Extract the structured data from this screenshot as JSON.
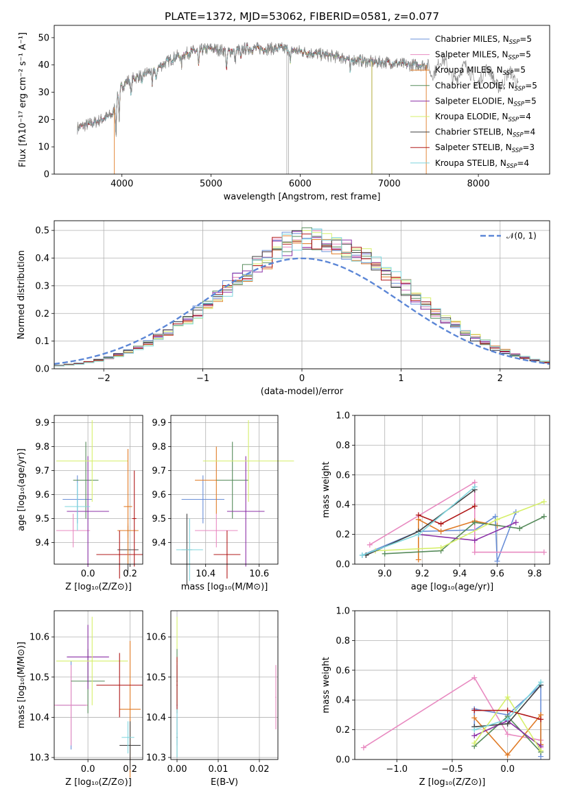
{
  "colors": {
    "chabrier_miles": "#6a8fd8",
    "salpeter_miles": "#e889c0",
    "kroupa_miles": "#e07b26",
    "chabrier_elodie": "#558a5a",
    "salpeter_elodie": "#8b2fa6",
    "kroupa_elodie": "#d6ef6a",
    "chabrier_stelib": "#404040",
    "salpeter_stelib": "#b01818",
    "kroupa_stelib": "#7dd6de",
    "normal_curve": "#5b86d6",
    "grid": "#b0b0b0"
  },
  "chart_data": [
    {
      "id": "spectrum",
      "type": "line",
      "title": "PLATE=1372, MJD=53062, FIBERID=0581, z=0.077",
      "xlabel": "wavelength [Angstrom, rest frame]",
      "ylabel": "Flux [fλ10⁻¹⁷ erg cm⁻² s⁻¹ A⁻¹]",
      "xlim": [
        3240,
        8800
      ],
      "ylim": [
        0,
        54.5
      ],
      "xticks": [
        4000,
        5000,
        6000,
        7000,
        8000
      ],
      "yticks": [
        0,
        10,
        20,
        30,
        40,
        50
      ],
      "grid": false,
      "legend_position": "top-right",
      "legend": [
        "Chabrier MILES, N_SSP=5",
        "Salpeter MILES, N_SSP=5",
        "Kroupa MILES, N_SSP=5",
        "Chabrier ELODIE, N_SSP=5",
        "Salpeter ELODIE, N_SSP=5",
        "Kroupa ELODIE, N_SSP=4",
        "Chabrier STELIB, N_SSP=4",
        "Salpeter STELIB, N_SSP=3",
        "Kroupa STELIB, N_SSP=4"
      ],
      "continuum_x": [
        3500,
        3700,
        3900,
        3950,
        4050,
        4200,
        4400,
        4600,
        4800,
        5000,
        5200,
        5400,
        5600,
        5800,
        6000,
        6200,
        6400,
        6600,
        6800,
        7000,
        7200,
        7400,
        7600,
        7800,
        8000,
        8200,
        8450
      ],
      "continuum_y": [
        17,
        19,
        22,
        30,
        34,
        36,
        39,
        43,
        45,
        46,
        45,
        46,
        46,
        46,
        45,
        44,
        43,
        42,
        41,
        41,
        40,
        40,
        39,
        37,
        36,
        35,
        34
      ]
    },
    {
      "id": "residuals",
      "type": "histogram",
      "xlabel": "(data-model)/error",
      "ylabel": "Normed distribution",
      "xlim": [
        -2.5,
        2.5
      ],
      "ylim": [
        0,
        0.535
      ],
      "xticks": [
        -2,
        -1,
        0,
        1,
        2
      ],
      "yticks": [
        0.0,
        0.1,
        0.2,
        0.3,
        0.4,
        0.5
      ],
      "grid": true,
      "legend_position": "top-right",
      "legend": [
        "𝒩(0, 1)"
      ],
      "normal": {
        "mu": 0,
        "sigma": 1
      }
    },
    {
      "id": "age-vs-z",
      "type": "scatter",
      "xlabel": "Z [log₁₀(Z/Z⊙)]",
      "ylabel": "age  [log₁₀(age/yr)]",
      "xlim": [
        -0.16,
        0.26
      ],
      "ylim": [
        9.31,
        9.93
      ],
      "xticks": [
        0.0,
        0.2
      ],
      "yticks": [
        9.4,
        9.5,
        9.6,
        9.7,
        9.8,
        9.9
      ],
      "grid": true,
      "points": [
        {
          "s": "chabrier_miles",
          "x": -0.05,
          "xerr": 0.07,
          "y": 9.58,
          "yerr": 0.1
        },
        {
          "s": "salpeter_miles",
          "x": -0.07,
          "xerr": 0.08,
          "y": 9.45,
          "yerr": 0.07
        },
        {
          "s": "kroupa_miles",
          "x": 0.19,
          "xerr": 0.05,
          "y": 9.45,
          "yerr": 0.03
        },
        {
          "s": "chabrier_elodie",
          "x": -0.01,
          "xerr": 0.06,
          "y": 9.66,
          "yerr": 0.16
        },
        {
          "s": "salpeter_elodie",
          "x": 0.0,
          "xerr": 0.1,
          "y": 9.53,
          "yerr": 0.23
        },
        {
          "s": "kroupa_elodie",
          "x": 0.02,
          "xerr": 0.17,
          "y": 9.74,
          "yerr": 0.17
        },
        {
          "s": "chabrier_stelib",
          "x": 0.19,
          "xerr": 0.05,
          "y": 9.37,
          "yerr": 0.1
        },
        {
          "s": "salpeter_stelib",
          "x": 0.15,
          "xerr": 0.11,
          "y": 9.35,
          "yerr": 0.1
        },
        {
          "s": "kroupa_stelib",
          "x": -0.05,
          "xerr": 0.06,
          "y": 9.55,
          "yerr": 0.1
        },
        {
          "s": "kroupa_miles",
          "x": 0.19,
          "xerr": 0.02,
          "y": 9.55,
          "yerr": 0.24
        },
        {
          "s": "salpeter_stelib",
          "x": 0.22,
          "xerr": 0.01,
          "y": 9.5,
          "yerr": 0.2
        }
      ]
    },
    {
      "id": "age-vs-mass",
      "type": "scatter",
      "xlabel": "mass [log₁₀(M/M⊙)]",
      "ylabel": "",
      "xlim": [
        10.27,
        10.67
      ],
      "ylim": [
        9.31,
        9.93
      ],
      "xticks": [
        10.4,
        10.6
      ],
      "yticks": [
        9.4,
        9.5,
        9.6,
        9.7,
        9.8,
        9.9
      ],
      "grid": true,
      "points": [
        {
          "s": "chabrier_miles",
          "x": 10.39,
          "xerr": 0.08,
          "y": 9.58,
          "yerr": 0.1
        },
        {
          "s": "salpeter_miles",
          "x": 10.44,
          "xerr": 0.08,
          "y": 9.45,
          "yerr": 0.07
        },
        {
          "s": "kroupa_miles",
          "x": 10.44,
          "xerr": 0.08,
          "y": 9.66,
          "yerr": 0.14
        },
        {
          "s": "chabrier_elodie",
          "x": 10.5,
          "xerr": 0.06,
          "y": 9.66,
          "yerr": 0.16
        },
        {
          "s": "salpeter_elodie",
          "x": 10.55,
          "xerr": 0.07,
          "y": 9.53,
          "yerr": 0.23
        },
        {
          "s": "kroupa_elodie",
          "x": 10.56,
          "xerr": 0.17,
          "y": 9.74,
          "yerr": 0.17
        },
        {
          "s": "chabrier_stelib",
          "x": 10.33,
          "xerr": 0.02,
          "y": 9.37,
          "yerr": 0.15
        },
        {
          "s": "salpeter_stelib",
          "x": 10.48,
          "xerr": 0.05,
          "y": 9.35,
          "yerr": 0.1
        },
        {
          "s": "kroupa_stelib",
          "x": 10.34,
          "xerr": 0.05,
          "y": 9.37,
          "yerr": 0.13
        }
      ]
    },
    {
      "id": "mass-weight-vs-age",
      "type": "line",
      "xlabel": "age  [log₁₀(age/yr)]",
      "ylabel": "mass weight",
      "xlim": [
        8.84,
        9.88
      ],
      "ylim": [
        0,
        1.0
      ],
      "xticks": [
        9.0,
        9.2,
        9.4,
        9.6,
        9.8
      ],
      "yticks": [
        0.0,
        0.2,
        0.4,
        0.6,
        0.8,
        1.0
      ],
      "grid": true,
      "series": [
        {
          "s": "chabrier_miles",
          "x": [
            8.88,
            9.18,
            9.48,
            9.59,
            9.6,
            9.7
          ],
          "y": [
            0.06,
            0.22,
            0.23,
            0.32,
            0.02,
            0.35
          ]
        },
        {
          "s": "salpeter_miles",
          "x": [
            8.92,
            9.48,
            9.48,
            9.85
          ],
          "y": [
            0.13,
            0.55,
            0.08,
            0.08
          ]
        },
        {
          "s": "kroupa_miles",
          "x": [
            9.18,
            9.18,
            9.3,
            9.48,
            9.6
          ],
          "y": [
            0.03,
            0.3,
            0.22,
            0.29,
            0.26
          ]
        },
        {
          "s": "chabrier_elodie",
          "x": [
            9.0,
            9.3,
            9.48,
            9.72,
            9.85
          ],
          "y": [
            0.07,
            0.09,
            0.28,
            0.24,
            0.32
          ]
        },
        {
          "s": "salpeter_elodie",
          "x": [
            9.18,
            9.48,
            9.7
          ],
          "y": [
            0.2,
            0.16,
            0.28
          ]
        },
        {
          "s": "kroupa_elodie",
          "x": [
            8.95,
            9.3,
            9.6,
            9.85
          ],
          "y": [
            0.09,
            0.11,
            0.3,
            0.42
          ]
        },
        {
          "s": "chabrier_stelib",
          "x": [
            8.9,
            9.18,
            9.48
          ],
          "y": [
            0.06,
            0.22,
            0.5
          ]
        },
        {
          "s": "salpeter_stelib",
          "x": [
            9.18,
            9.3,
            9.48
          ],
          "y": [
            0.33,
            0.27,
            0.39
          ]
        },
        {
          "s": "kroupa_stelib",
          "x": [
            8.88,
            9.18,
            9.48
          ],
          "y": [
            0.06,
            0.2,
            0.52
          ]
        }
      ]
    },
    {
      "id": "mass-vs-z",
      "type": "scatter",
      "xlabel": "Z [log₁₀(Z/Z⊙)]",
      "ylabel": "mass [log₁₀(M/M⊙)]",
      "xlim": [
        -0.16,
        0.26
      ],
      "ylim": [
        10.295,
        10.665
      ],
      "xticks": [
        0.0,
        0.2
      ],
      "yticks": [
        10.3,
        10.4,
        10.5,
        10.6
      ],
      "grid": true,
      "points": [
        {
          "s": "chabrier_miles",
          "x": -0.08,
          "xerr": 0.07,
          "y": 10.43,
          "yerr": 0.11
        },
        {
          "s": "salpeter_miles",
          "x": -0.08,
          "xerr": 0.08,
          "y": 10.43,
          "yerr": 0.1
        },
        {
          "s": "kroupa_miles",
          "x": 0.2,
          "xerr": 0.05,
          "y": 10.42,
          "yerr": 0.17
        },
        {
          "s": "chabrier_elodie",
          "x": 0.0,
          "xerr": 0.08,
          "y": 10.49,
          "yerr": 0.08
        },
        {
          "s": "salpeter_elodie",
          "x": 0.0,
          "xerr": 0.1,
          "y": 10.55,
          "yerr": 0.08
        },
        {
          "s": "kroupa_elodie",
          "x": 0.02,
          "xerr": 0.17,
          "y": 10.54,
          "yerr": 0.11
        },
        {
          "s": "chabrier_stelib",
          "x": 0.2,
          "xerr": 0.05,
          "y": 10.33,
          "yerr": 0.06
        },
        {
          "s": "salpeter_stelib",
          "x": 0.15,
          "xerr": 0.11,
          "y": 10.48,
          "yerr": 0.08
        },
        {
          "s": "kroupa_stelib",
          "x": 0.19,
          "xerr": 0.03,
          "y": 10.35,
          "yerr": 0.04
        }
      ]
    },
    {
      "id": "mass-vs-ebv",
      "type": "scatter",
      "xlabel": "E(B-V)",
      "ylabel": "",
      "xlim": [
        -0.0015,
        0.0245
      ],
      "ylim": [
        10.295,
        10.665
      ],
      "xticks": [
        0.0,
        0.01,
        0.02
      ],
      "yticks": [
        10.3,
        10.4,
        10.5,
        10.6
      ],
      "grid": true,
      "points": [
        {
          "s": "chabrier_miles",
          "x": 0.0,
          "xerr": 0,
          "y": 10.43,
          "yerr": 0.1
        },
        {
          "s": "kroupa_elodie",
          "x": 0.0,
          "xerr": 0,
          "y": 10.54,
          "yerr": 0.11
        },
        {
          "s": "chabrier_elodie",
          "x": 0.0,
          "xerr": 0,
          "y": 10.49,
          "yerr": 0.08
        },
        {
          "s": "salpeter_stelib",
          "x": 0.0,
          "xerr": 0,
          "y": 10.48,
          "yerr": 0.07
        },
        {
          "s": "chabrier_stelib",
          "x": 0.0,
          "xerr": 0,
          "y": 10.35,
          "yerr": 0.05
        },
        {
          "s": "kroupa_stelib",
          "x": 0.0,
          "xerr": 0,
          "y": 10.36,
          "yerr": 0.06
        },
        {
          "s": "salpeter_miles",
          "x": 0.024,
          "xerr": 0,
          "y": 10.45,
          "yerr": 0.08
        }
      ]
    },
    {
      "id": "mass-weight-vs-z",
      "type": "line",
      "xlabel": "Z [log₁₀(Z/Z⊙)]",
      "ylabel": "mass weight",
      "xlim": [
        -1.38,
        0.38
      ],
      "ylim": [
        0,
        1.0
      ],
      "xticks": [
        -1.0,
        -0.5,
        0.0
      ],
      "yticks": [
        0.0,
        0.2,
        0.4,
        0.6,
        0.8,
        1.0
      ],
      "grid": true,
      "series": [
        {
          "s": "salpeter_miles",
          "x": [
            -1.3,
            -0.3,
            0.0,
            0.3,
            0.3
          ],
          "y": [
            0.08,
            0.55,
            0.17,
            0.13,
            0.08
          ]
        },
        {
          "s": "chabrier_miles",
          "x": [
            -0.3,
            -0.3,
            0.0,
            0.3,
            0.3
          ],
          "y": [
            0.22,
            0.34,
            0.3,
            0.5,
            0.02
          ]
        },
        {
          "s": "kroupa_miles",
          "x": [
            -0.3,
            0.0,
            0.3,
            0.3
          ],
          "y": [
            0.28,
            0.03,
            0.3,
            0.1
          ]
        },
        {
          "s": "chabrier_elodie",
          "x": [
            -0.3,
            0.0,
            0.3
          ],
          "y": [
            0.09,
            0.29,
            0.05
          ]
        },
        {
          "s": "salpeter_elodie",
          "x": [
            -0.3,
            0.0,
            0.3
          ],
          "y": [
            0.16,
            0.26,
            0.09
          ]
        },
        {
          "s": "kroupa_elodie",
          "x": [
            -0.3,
            0.0,
            0.3
          ],
          "y": [
            0.11,
            0.42,
            0.06
          ]
        },
        {
          "s": "chabrier_stelib",
          "x": [
            -0.3,
            0.0,
            0.3
          ],
          "y": [
            0.22,
            0.24,
            0.5
          ]
        },
        {
          "s": "salpeter_stelib",
          "x": [
            -0.3,
            0.0,
            0.3
          ],
          "y": [
            0.33,
            0.33,
            0.27
          ]
        },
        {
          "s": "kroupa_stelib",
          "x": [
            -0.3,
            0.0,
            0.3
          ],
          "y": [
            0.2,
            0.27,
            0.52
          ]
        }
      ]
    }
  ]
}
